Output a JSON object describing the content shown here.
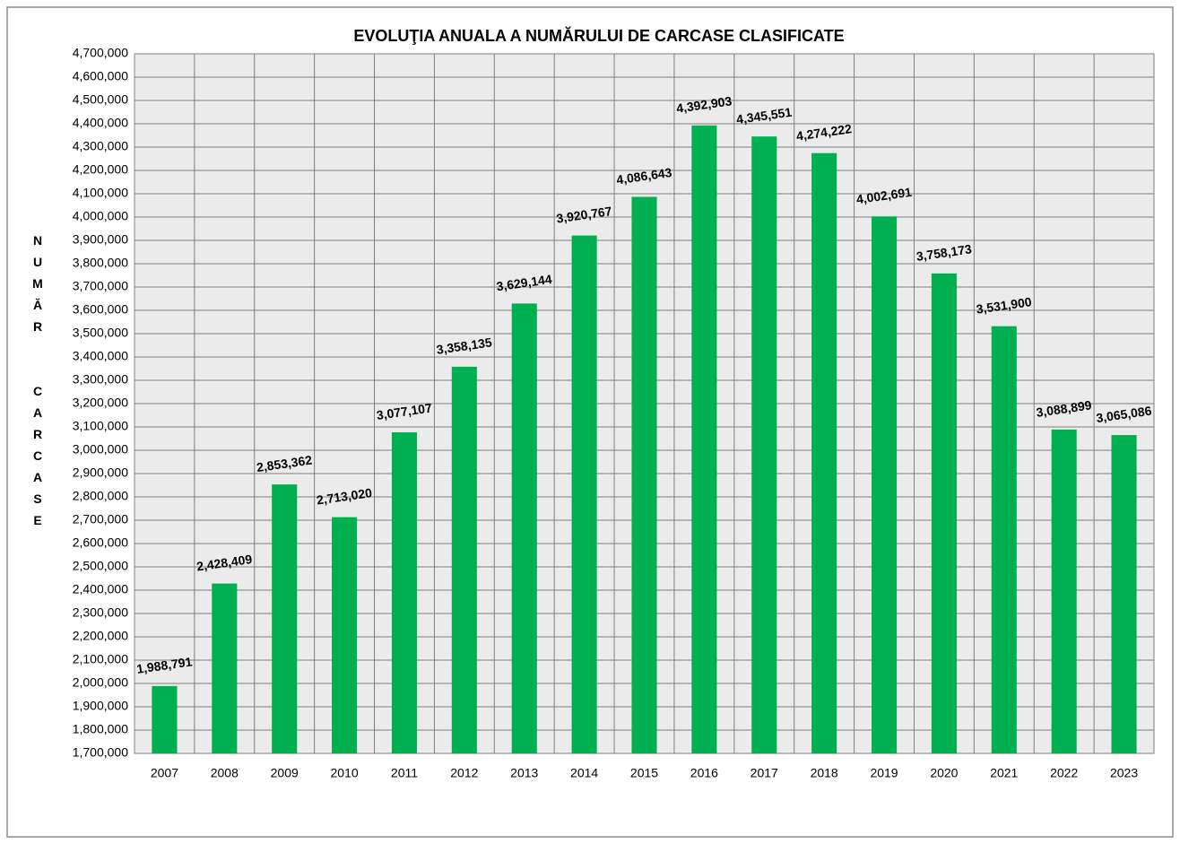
{
  "chart_data": {
    "type": "bar",
    "title": "EVOLUŢIA ANUALA  A NUMĂRULUI DE CARCASE  CLASIFICATE",
    "y_label": "NUMĂR  CARCASE",
    "categories": [
      "2007",
      "2008",
      "2009",
      "2010",
      "2011",
      "2012",
      "2013",
      "2014",
      "2015",
      "2016",
      "2017",
      "2018",
      "2019",
      "2020",
      "2021",
      "2022",
      "2023"
    ],
    "values": [
      1988791,
      2428409,
      2853362,
      2713020,
      3077107,
      3358135,
      3629144,
      3920767,
      4086643,
      4392903,
      4345551,
      4274222,
      4002691,
      3758173,
      3531900,
      3088899,
      3065086
    ],
    "value_labels": [
      "1,988,791",
      "2,428,409",
      "2,853,362",
      "2,713,020",
      "3,077,107",
      "3,358,135",
      "3,629,144",
      "3,920,767",
      "4,086,643",
      "4,392,903",
      "4,345,551",
      "4,274,222",
      "4,002,691",
      "3,758,173",
      "3,531,900",
      "3,088,899",
      "3,065,086"
    ],
    "color": "#00b050",
    "ylim": [
      1700000,
      4700000
    ],
    "yticks": [
      {
        "value": 1700000,
        "label": "1,700,000"
      },
      {
        "value": 1800000,
        "label": "1,800,000"
      },
      {
        "value": 1900000,
        "label": "1,900,000"
      },
      {
        "value": 2000000,
        "label": "2,000,000"
      },
      {
        "value": 2100000,
        "label": "2,100,000"
      },
      {
        "value": 2200000,
        "label": "2,200,000"
      },
      {
        "value": 2300000,
        "label": "2,300,000"
      },
      {
        "value": 2400000,
        "label": "2,400,000"
      },
      {
        "value": 2500000,
        "label": "2,500,000"
      },
      {
        "value": 2600000,
        "label": "2,600,000"
      },
      {
        "value": 2700000,
        "label": "2,700,000"
      },
      {
        "value": 2800000,
        "label": "2,800,000"
      },
      {
        "value": 2900000,
        "label": "2,900,000"
      },
      {
        "value": 3000000,
        "label": "3,000,000"
      },
      {
        "value": 3100000,
        "label": "3,100,000"
      },
      {
        "value": 3200000,
        "label": "3,200,000"
      },
      {
        "value": 3300000,
        "label": "3,300,000"
      },
      {
        "value": 3400000,
        "label": "3,400,000"
      },
      {
        "value": 3500000,
        "label": "3,500,000"
      },
      {
        "value": 3600000,
        "label": "3,600,000"
      },
      {
        "value": 3700000,
        "label": "3,700,000"
      },
      {
        "value": 3800000,
        "label": "3,800,000"
      },
      {
        "value": 3900000,
        "label": "3,900,000"
      },
      {
        "value": 4000000,
        "label": "4,000,000"
      },
      {
        "value": 4100000,
        "label": "4,100,000"
      },
      {
        "value": 4200000,
        "label": "4,200,000"
      },
      {
        "value": 4300000,
        "label": "4,300,000"
      },
      {
        "value": 4400000,
        "label": "4,400,000"
      },
      {
        "value": 4500000,
        "label": "4,500,000"
      },
      {
        "value": 4600000,
        "label": "4,600,000"
      },
      {
        "value": 4700000,
        "label": "4,700,000"
      }
    ],
    "grid": true
  }
}
